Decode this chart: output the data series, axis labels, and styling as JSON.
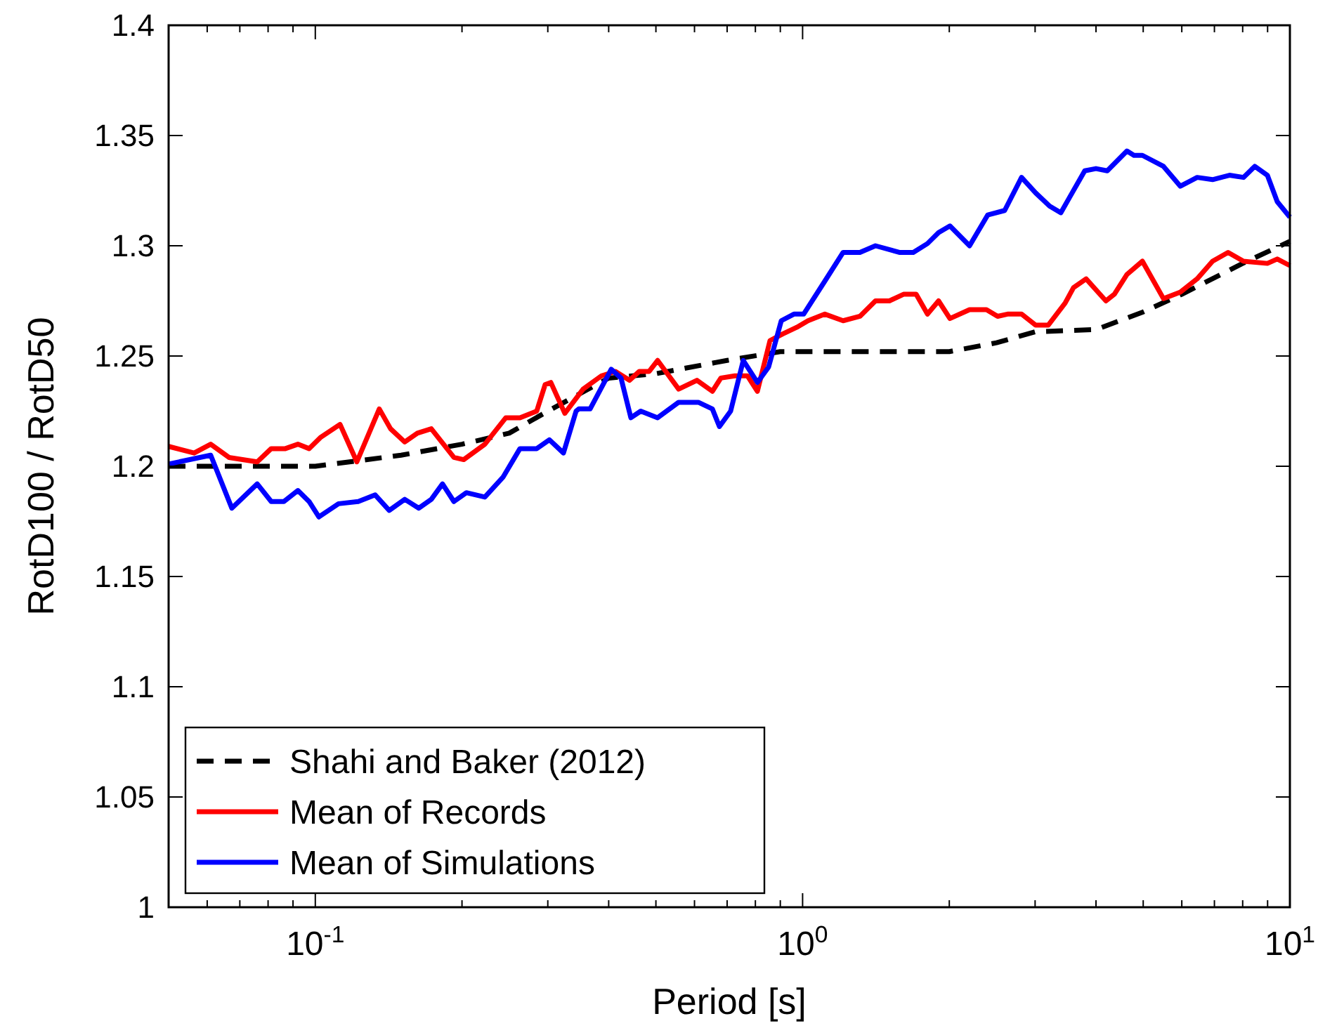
{
  "chart_data": {
    "type": "line",
    "xlabel": "Period [s]",
    "ylabel": "RotD100 / RotD50",
    "log": "x",
    "xlim": [
      0.05,
      10
    ],
    "ylim": [
      1,
      1.4
    ],
    "xticks": [
      {
        "value": 0.1,
        "label": "10$^{-1}$"
      },
      {
        "value": 1,
        "label": "10$^{0}$"
      },
      {
        "value": 10,
        "label": "10$^{1}$"
      }
    ],
    "yticks": [
      1,
      1.05,
      1.1,
      1.15,
      1.2,
      1.25,
      1.3,
      1.35,
      1.4
    ],
    "grid": false,
    "legend": "bottom left",
    "series": [
      {
        "name": "Shahi and Baker (2012)",
        "color": "#000000",
        "line_style": "dashed",
        "x": [
          0.05,
          0.1,
          0.15,
          0.2,
          0.25,
          0.3,
          0.4,
          0.5,
          0.7,
          0.9,
          2,
          2.5,
          3,
          4,
          5,
          6,
          8,
          10
        ],
        "values": [
          1.2,
          1.2,
          1.205,
          1.21,
          1.215,
          1.225,
          1.24,
          1.242,
          1.248,
          1.252,
          1.252,
          1.256,
          1.261,
          1.262,
          1.27,
          1.278,
          1.292,
          1.302
        ]
      },
      {
        "name": "Mean of Records",
        "color": "#ff0000",
        "line_style": "solid",
        "x": [
          0.05,
          0.0564,
          0.061,
          0.0665,
          0.076,
          0.0812,
          0.0868,
          0.0921,
          0.0971,
          0.1024,
          0.1124,
          0.1217,
          0.1353,
          0.1427,
          0.1526,
          0.162,
          0.173,
          0.1925,
          0.2016,
          0.2228,
          0.246,
          0.263,
          0.2847,
          0.2962,
          0.3043,
          0.3251,
          0.3545,
          0.3865,
          0.4129,
          0.4413,
          0.4623,
          0.4843,
          0.504,
          0.5567,
          0.607,
          0.6529,
          0.6796,
          0.7261,
          0.7707,
          0.8077,
          0.8572,
          0.9101,
          0.9725,
          1.026,
          1.111,
          1.211,
          1.311,
          1.411,
          1.507,
          1.611,
          1.71,
          1.804,
          1.901,
          2.006,
          2.201,
          2.384,
          2.513,
          2.633,
          2.814,
          3.007,
          3.192,
          3.457,
          3.597,
          3.818,
          4.192,
          4.362,
          4.63,
          4.981,
          5.503,
          5.959,
          6.452,
          6.939,
          7.467,
          8.03,
          8.99,
          9.42,
          10
        ],
        "values": [
          1.209,
          1.206,
          1.21,
          1.204,
          1.202,
          1.208,
          1.208,
          1.21,
          1.208,
          1.213,
          1.219,
          1.202,
          1.226,
          1.217,
          1.211,
          1.215,
          1.217,
          1.204,
          1.203,
          1.21,
          1.222,
          1.222,
          1.225,
          1.237,
          1.238,
          1.224,
          1.235,
          1.241,
          1.243,
          1.239,
          1.243,
          1.243,
          1.248,
          1.235,
          1.239,
          1.234,
          1.24,
          1.241,
          1.241,
          1.234,
          1.257,
          1.26,
          1.263,
          1.266,
          1.269,
          1.266,
          1.268,
          1.275,
          1.275,
          1.278,
          1.278,
          1.269,
          1.275,
          1.267,
          1.271,
          1.271,
          1.268,
          1.269,
          1.269,
          1.264,
          1.264,
          1.274,
          1.281,
          1.285,
          1.275,
          1.278,
          1.287,
          1.293,
          1.276,
          1.279,
          1.285,
          1.293,
          1.297,
          1.293,
          1.292,
          1.294,
          1.291
        ]
      },
      {
        "name": "Mean of Simulations",
        "color": "#0000ff",
        "line_style": "solid",
        "x": [
          0.05,
          0.061,
          0.0674,
          0.076,
          0.0812,
          0.0862,
          0.0921,
          0.0971,
          0.1017,
          0.1116,
          0.1225,
          0.1327,
          0.1418,
          0.1526,
          0.1631,
          0.173,
          0.1824,
          0.1925,
          0.2042,
          0.2228,
          0.2427,
          0.263,
          0.2847,
          0.3022,
          0.323,
          0.3429,
          0.3475,
          0.3664,
          0.4048,
          0.424,
          0.4442,
          0.4654,
          0.504,
          0.5567,
          0.611,
          0.6529,
          0.675,
          0.7117,
          0.7555,
          0.8077,
          0.8516,
          0.9042,
          0.9597,
          1.005,
          1.111,
          1.211,
          1.311,
          1.411,
          1.579,
          1.687,
          1.804,
          1.901,
          2.006,
          2.201,
          2.399,
          2.598,
          2.814,
          3.007,
          3.213,
          3.388,
          3.793,
          4.0,
          4.219,
          4.63,
          4.786,
          4.981,
          5.503,
          5.959,
          6.452,
          6.939,
          7.516,
          8.03,
          8.47,
          8.99,
          9.42,
          10
        ],
        "values": [
          1.201,
          1.205,
          1.181,
          1.192,
          1.184,
          1.184,
          1.189,
          1.184,
          1.177,
          1.183,
          1.184,
          1.187,
          1.18,
          1.185,
          1.181,
          1.185,
          1.192,
          1.184,
          1.188,
          1.186,
          1.195,
          1.208,
          1.208,
          1.212,
          1.206,
          1.225,
          1.226,
          1.226,
          1.244,
          1.24,
          1.222,
          1.225,
          1.222,
          1.229,
          1.229,
          1.226,
          1.218,
          1.225,
          1.248,
          1.238,
          1.245,
          1.266,
          1.269,
          1.269,
          1.284,
          1.297,
          1.297,
          1.3,
          1.297,
          1.297,
          1.301,
          1.306,
          1.309,
          1.3,
          1.314,
          1.316,
          1.331,
          1.324,
          1.318,
          1.315,
          1.334,
          1.335,
          1.334,
          1.343,
          1.341,
          1.341,
          1.336,
          1.327,
          1.331,
          1.33,
          1.332,
          1.331,
          1.336,
          1.332,
          1.32,
          1.313
        ]
      }
    ]
  }
}
